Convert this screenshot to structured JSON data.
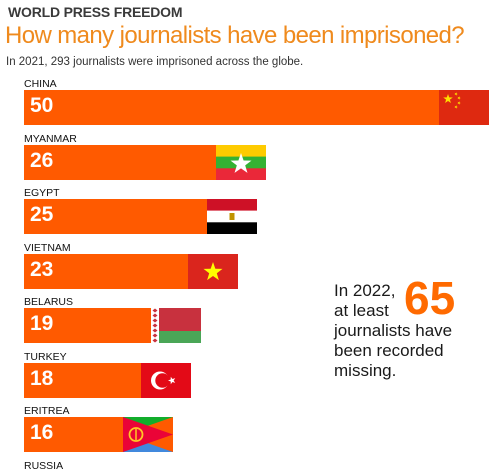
{
  "header": {
    "kicker": "WORLD PRESS FREEDOM",
    "title": "How many journalists have been imprisoned?",
    "subtitle": "In 2021, 293 journalists were imprisoned across the globe."
  },
  "colors": {
    "bar": "#ff5a00",
    "title": "#ef8a1d"
  },
  "chart_data": {
    "type": "bar",
    "orientation": "horizontal",
    "categories": [
      "CHINA",
      "MYANMAR",
      "EGYPT",
      "VIETNAM",
      "BELARUS",
      "TURKEY",
      "ERITREA",
      "RUSSIA"
    ],
    "values": [
      50,
      26,
      25,
      23,
      19,
      18,
      16,
      null
    ],
    "flags": [
      "china-flag-icon",
      "myanmar-flag-icon",
      "egypt-flag-icon",
      "vietnam-flag-icon",
      "belarus-flag-icon",
      "turkey-flag-icon",
      "eritrea-flag-icon",
      ""
    ]
  },
  "callout": {
    "line1": "In 2022,",
    "line2": "at least",
    "number": "65",
    "line3": "journalists have",
    "line4": "been recorded",
    "line5": "missing."
  }
}
